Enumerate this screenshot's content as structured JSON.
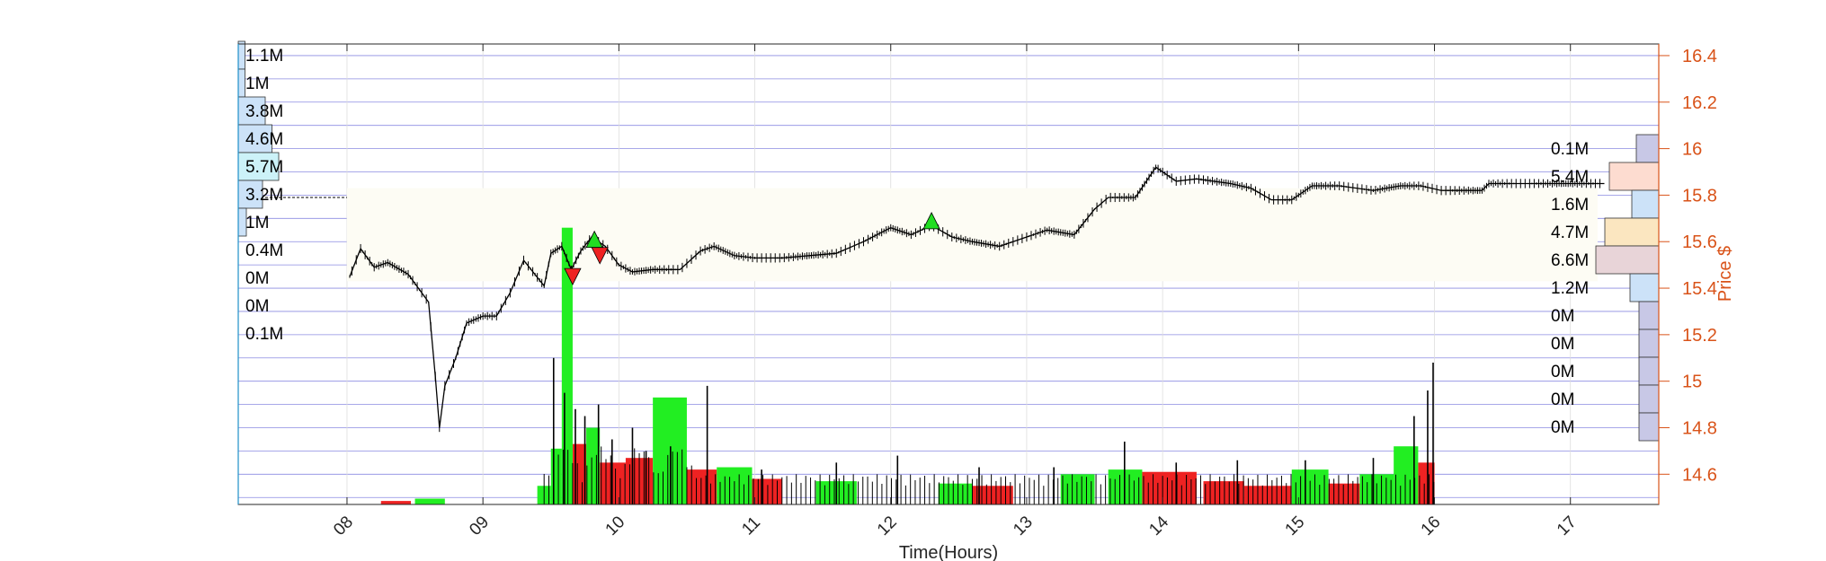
{
  "chart_data": {
    "type": "candlestick",
    "xlabel": "Time(Hours)",
    "ylabel": "Price $",
    "xlim": [
      7.2,
      17.65
    ],
    "ylim": [
      14.47,
      16.45
    ],
    "x_ticks": [
      "08",
      "09",
      "10",
      "11",
      "12",
      "13",
      "14",
      "15",
      "16",
      "17"
    ],
    "y_ticks": [
      "14.6",
      "14.8",
      "15",
      "15.2",
      "15.4",
      "15.6",
      "15.8",
      "16",
      "16.2",
      "16.4"
    ],
    "colors": {
      "axis_right": "#d95319",
      "grid": "#7777dd",
      "volume_up": "#22ee22",
      "volume_down": "#ee2222",
      "price_line": "#000000",
      "buy_marker": "#22dd22",
      "sell_marker": "#ee2222",
      "overlay": "#fdfcf4"
    },
    "price_series": [
      {
        "t": 8.02,
        "p": 15.45
      },
      {
        "t": 8.1,
        "p": 15.57
      },
      {
        "t": 8.2,
        "p": 15.49
      },
      {
        "t": 8.3,
        "p": 15.51
      },
      {
        "t": 8.45,
        "p": 15.46
      },
      {
        "t": 8.6,
        "p": 15.34
      },
      {
        "t": 8.65,
        "p": 15.02
      },
      {
        "t": 8.68,
        "p": 14.8
      },
      {
        "t": 8.72,
        "p": 14.98
      },
      {
        "t": 8.8,
        "p": 15.1
      },
      {
        "t": 8.88,
        "p": 15.25
      },
      {
        "t": 9.0,
        "p": 15.28
      },
      {
        "t": 9.1,
        "p": 15.28
      },
      {
        "t": 9.2,
        "p": 15.38
      },
      {
        "t": 9.3,
        "p": 15.52
      },
      {
        "t": 9.45,
        "p": 15.41
      },
      {
        "t": 9.5,
        "p": 15.55
      },
      {
        "t": 9.58,
        "p": 15.58
      },
      {
        "t": 9.65,
        "p": 15.48
      },
      {
        "t": 9.72,
        "p": 15.56
      },
      {
        "t": 9.8,
        "p": 15.62
      },
      {
        "t": 9.9,
        "p": 15.58
      },
      {
        "t": 10.0,
        "p": 15.5
      },
      {
        "t": 10.1,
        "p": 15.47
      },
      {
        "t": 10.25,
        "p": 15.48
      },
      {
        "t": 10.45,
        "p": 15.48
      },
      {
        "t": 10.6,
        "p": 15.56
      },
      {
        "t": 10.7,
        "p": 15.58
      },
      {
        "t": 10.85,
        "p": 15.54
      },
      {
        "t": 11.0,
        "p": 15.53
      },
      {
        "t": 11.2,
        "p": 15.53
      },
      {
        "t": 11.4,
        "p": 15.54
      },
      {
        "t": 11.6,
        "p": 15.55
      },
      {
        "t": 11.8,
        "p": 15.6
      },
      {
        "t": 12.0,
        "p": 15.66
      },
      {
        "t": 12.15,
        "p": 15.63
      },
      {
        "t": 12.3,
        "p": 15.67
      },
      {
        "t": 12.45,
        "p": 15.62
      },
      {
        "t": 12.6,
        "p": 15.6
      },
      {
        "t": 12.8,
        "p": 15.58
      },
      {
        "t": 12.95,
        "p": 15.61
      },
      {
        "t": 13.15,
        "p": 15.65
      },
      {
        "t": 13.35,
        "p": 15.63
      },
      {
        "t": 13.5,
        "p": 15.74
      },
      {
        "t": 13.6,
        "p": 15.79
      },
      {
        "t": 13.8,
        "p": 15.79
      },
      {
        "t": 13.95,
        "p": 15.92
      },
      {
        "t": 14.1,
        "p": 15.86
      },
      {
        "t": 14.25,
        "p": 15.87
      },
      {
        "t": 14.5,
        "p": 15.85
      },
      {
        "t": 14.65,
        "p": 15.83
      },
      {
        "t": 14.8,
        "p": 15.78
      },
      {
        "t": 14.95,
        "p": 15.78
      },
      {
        "t": 15.1,
        "p": 15.84
      },
      {
        "t": 15.3,
        "p": 15.84
      },
      {
        "t": 15.55,
        "p": 15.82
      },
      {
        "t": 15.75,
        "p": 15.84
      },
      {
        "t": 15.9,
        "p": 15.84
      },
      {
        "t": 16.05,
        "p": 15.82
      },
      {
        "t": 16.35,
        "p": 15.82
      },
      {
        "t": 16.4,
        "p": 15.85
      },
      {
        "t": 17.25,
        "p": 15.85
      }
    ],
    "volume_bars": [
      {
        "x0": 8.5,
        "x1": 8.72,
        "top": 14.495,
        "dir": "up"
      },
      {
        "x0": 8.25,
        "x1": 8.47,
        "top": 14.485,
        "dir": "down"
      },
      {
        "x0": 9.4,
        "x1": 9.5,
        "top": 14.55,
        "dir": "up"
      },
      {
        "x0": 9.5,
        "x1": 9.58,
        "top": 14.71,
        "dir": "up"
      },
      {
        "x0": 9.58,
        "x1": 9.66,
        "top": 15.66,
        "dir": "up"
      },
      {
        "x0": 9.66,
        "x1": 9.76,
        "top": 14.73,
        "dir": "down"
      },
      {
        "x0": 9.76,
        "x1": 9.86,
        "top": 14.8,
        "dir": "up"
      },
      {
        "x0": 9.86,
        "x1": 10.05,
        "top": 14.65,
        "dir": "down"
      },
      {
        "x0": 10.05,
        "x1": 10.25,
        "top": 14.67,
        "dir": "down"
      },
      {
        "x0": 10.25,
        "x1": 10.5,
        "top": 14.93,
        "dir": "up"
      },
      {
        "x0": 10.5,
        "x1": 10.72,
        "top": 14.62,
        "dir": "down"
      },
      {
        "x0": 10.72,
        "x1": 10.98,
        "top": 14.63,
        "dir": "up"
      },
      {
        "x0": 10.98,
        "x1": 11.2,
        "top": 14.58,
        "dir": "down"
      },
      {
        "x0": 11.45,
        "x1": 11.75,
        "top": 14.57,
        "dir": "up"
      },
      {
        "x0": 12.35,
        "x1": 12.6,
        "top": 14.56,
        "dir": "up"
      },
      {
        "x0": 12.6,
        "x1": 12.9,
        "top": 14.55,
        "dir": "down"
      },
      {
        "x0": 13.25,
        "x1": 13.5,
        "top": 14.6,
        "dir": "up"
      },
      {
        "x0": 13.6,
        "x1": 13.85,
        "top": 14.62,
        "dir": "up"
      },
      {
        "x0": 13.85,
        "x1": 14.25,
        "top": 14.61,
        "dir": "down"
      },
      {
        "x0": 14.3,
        "x1": 14.6,
        "top": 14.57,
        "dir": "down"
      },
      {
        "x0": 14.6,
        "x1": 14.95,
        "top": 14.55,
        "dir": "down"
      },
      {
        "x0": 14.95,
        "x1": 15.22,
        "top": 14.62,
        "dir": "up"
      },
      {
        "x0": 15.22,
        "x1": 15.45,
        "top": 14.56,
        "dir": "down"
      },
      {
        "x0": 15.45,
        "x1": 15.7,
        "top": 14.6,
        "dir": "up"
      },
      {
        "x0": 15.7,
        "x1": 15.88,
        "top": 14.72,
        "dir": "up"
      },
      {
        "x0": 15.88,
        "x1": 16.0,
        "top": 14.65,
        "dir": "down"
      }
    ],
    "volume_spikes": [
      {
        "t": 9.52,
        "top": 15.1
      },
      {
        "t": 9.6,
        "top": 14.95
      },
      {
        "t": 9.68,
        "top": 14.88
      },
      {
        "t": 9.75,
        "top": 14.85
      },
      {
        "t": 9.85,
        "top": 14.9
      },
      {
        "t": 9.95,
        "top": 14.75
      },
      {
        "t": 10.1,
        "top": 14.8
      },
      {
        "t": 10.2,
        "top": 14.7
      },
      {
        "t": 10.38,
        "top": 14.72
      },
      {
        "t": 10.65,
        "top": 14.98
      },
      {
        "t": 11.05,
        "top": 14.62
      },
      {
        "t": 11.6,
        "top": 14.65
      },
      {
        "t": 12.05,
        "top": 14.68
      },
      {
        "t": 12.65,
        "top": 14.63
      },
      {
        "t": 13.2,
        "top": 14.63
      },
      {
        "t": 13.72,
        "top": 14.74
      },
      {
        "t": 14.1,
        "top": 14.65
      },
      {
        "t": 14.55,
        "top": 14.66
      },
      {
        "t": 15.05,
        "top": 14.66
      },
      {
        "t": 15.55,
        "top": 14.67
      },
      {
        "t": 15.85,
        "top": 14.85
      },
      {
        "t": 15.95,
        "top": 14.96
      },
      {
        "t": 15.99,
        "top": 15.08
      }
    ],
    "markers": [
      {
        "type": "buy",
        "t": 9.82,
        "p": 15.61
      },
      {
        "type": "sell",
        "t": 9.66,
        "p": 15.45
      },
      {
        "type": "sell",
        "t": 9.86,
        "p": 15.54
      },
      {
        "type": "buy",
        "t": 12.3,
        "p": 15.69
      }
    ],
    "left_profile": {
      "rows": [
        {
          "label": "1.1M",
          "v": 0.05
        },
        {
          "label": "1M",
          "v": 0.05
        },
        {
          "label": "3.8M",
          "v": 0.2
        },
        {
          "label": "4.6M",
          "v": 0.25
        },
        {
          "label": "5.7M",
          "v": 0.3
        },
        {
          "label": "3.2M",
          "v": 0.18
        },
        {
          "label": "1M",
          "v": 0.06
        },
        {
          "label": "0.4M",
          "v": 0.0
        },
        {
          "label": "0M",
          "v": 0.0
        },
        {
          "label": "0M",
          "v": 0.0
        },
        {
          "label": "0.1M",
          "v": 0.0
        }
      ]
    },
    "right_profile": {
      "rows": [
        {
          "label": "0.1M",
          "v": 0.25,
          "color": "#c8c8e6"
        },
        {
          "label": "5.4M",
          "v": 0.55,
          "color": "#fddcd0"
        },
        {
          "label": "1.6M",
          "v": 0.3,
          "color": "#cce2f8"
        },
        {
          "label": "4.7M",
          "v": 0.6,
          "color": "#fbe6c0"
        },
        {
          "label": "6.6M",
          "v": 0.7,
          "color": "#e8d4d8"
        },
        {
          "label": "1.2M",
          "v": 0.32,
          "color": "#cce2f8"
        },
        {
          "label": "0M",
          "v": 0.22,
          "color": "#c8c8e6"
        },
        {
          "label": "0M",
          "v": 0.22,
          "color": "#c8c8e6"
        },
        {
          "label": "0M",
          "v": 0.22,
          "color": "#c8c8e6"
        },
        {
          "label": "0M",
          "v": 0.22,
          "color": "#c8c8e6"
        },
        {
          "label": "0M",
          "v": 0.22,
          "color": "#c8c8e6"
        }
      ]
    }
  }
}
